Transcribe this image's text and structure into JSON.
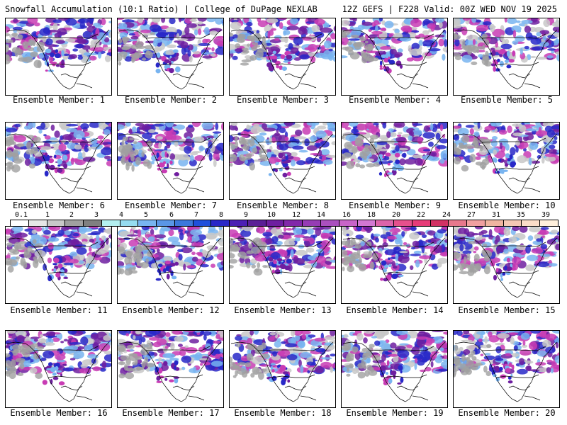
{
  "header": {
    "left_title": "Snowfall Accumulation (10:1 Ratio) | College of DuPage NEXLAB",
    "right_title": "12Z GEFS | F228 Valid: 00Z WED NOV 19 2025"
  },
  "panels": [
    {
      "caption": "Ensemble Member: 1"
    },
    {
      "caption": "Ensemble Member: 2"
    },
    {
      "caption": "Ensemble Member: 3"
    },
    {
      "caption": "Ensemble Member: 4"
    },
    {
      "caption": "Ensemble Member: 5"
    },
    {
      "caption": "Ensemble Member: 6"
    },
    {
      "caption": "Ensemble Member: 7"
    },
    {
      "caption": "Ensemble Member: 8"
    },
    {
      "caption": "Ensemble Member: 9"
    },
    {
      "caption": "Ensemble Member: 10"
    },
    {
      "caption": "Ensemble Member: 11"
    },
    {
      "caption": "Ensemble Member: 12"
    },
    {
      "caption": "Ensemble Member: 13"
    },
    {
      "caption": "Ensemble Member: 14"
    },
    {
      "caption": "Ensemble Member: 15"
    },
    {
      "caption": "Ensemble Member: 16"
    },
    {
      "caption": "Ensemble Member: 17"
    },
    {
      "caption": "Ensemble Member: 18"
    },
    {
      "caption": "Ensemble Member: 19"
    },
    {
      "caption": "Ensemble Member: 20"
    }
  ],
  "legend": {
    "labels": [
      "0.1",
      "1",
      "2",
      "3",
      "4",
      "5",
      "6",
      "7",
      "8",
      "9",
      "10",
      "12",
      "14",
      "16",
      "18",
      "20",
      "22",
      "24",
      "27",
      "31",
      "35",
      "39"
    ],
    "colors": [
      "#ffffff",
      "#e6e6e6",
      "#c8c8c8",
      "#a0a0a0",
      "#808080",
      "#b4f0f0",
      "#96dcf0",
      "#78b4f0",
      "#5a96e6",
      "#3c78dc",
      "#1e50dc",
      "#2828c8",
      "#4b1eb4",
      "#5a1e96",
      "#6e1ea0",
      "#8228aa",
      "#963cb4",
      "#aa50be",
      "#c864c8",
      "#d278d2",
      "#dc64aa",
      "#e6508c",
      "#e63c78",
      "#d23264",
      "#e6788c",
      "#f0a0a0",
      "#f0b4a0",
      "#f5c8b4",
      "#fadcc8",
      "#fff0dc"
    ]
  },
  "colors": {
    "snow_light_gray": "#c8c8c8",
    "snow_blue": "#78b4f0",
    "snow_deep_blue": "#2828c8",
    "snow_purple": "#6e1ea0",
    "snow_magenta": "#c83cb4"
  }
}
